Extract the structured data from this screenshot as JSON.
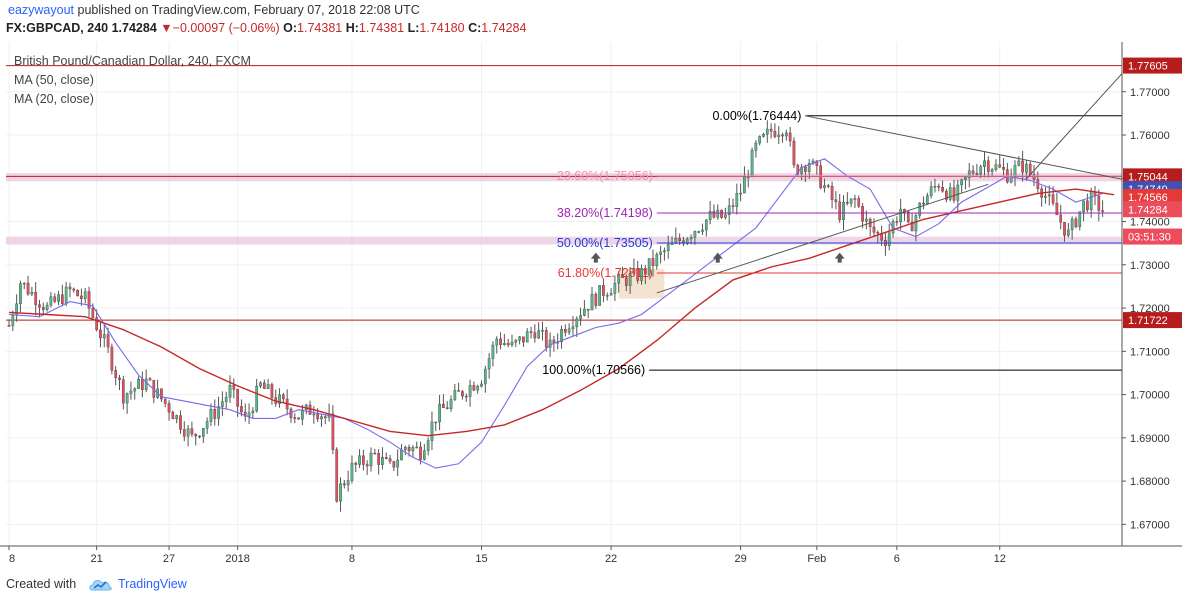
{
  "header": {
    "username": "eazywayout",
    "published_text": "published on TradingView.com, February 07, 2018 22:08 UTC",
    "symbol": "FX:GBPCAD, 240",
    "last": "1.74284",
    "change_arrow": "▼",
    "change": "−0.00097 (−0.06%)",
    "ohlc_o_label": "O:",
    "ohlc_o": "1.74381",
    "ohlc_h_label": "H:",
    "ohlc_h": "1.74381",
    "ohlc_l_label": "L:",
    "ohlc_l": "1.74180",
    "ohlc_c_label": "C:",
    "ohlc_c": "1.74284"
  },
  "legend": {
    "title": "British Pound/Canadian Dollar, 240, FXCM",
    "ma1": "MA (50, close)",
    "ma2": "MA (20, close)"
  },
  "footer": {
    "created": "Created with",
    "brand": "TradingView"
  },
  "colors": {
    "bull": "#53b987",
    "bear": "#eb4d5c",
    "ma50": "#c62828",
    "ma20": "#7b68ee",
    "hline": "#b71c1c",
    "fib_black": "#000000",
    "fib_pink": "#f48fb1",
    "fib_purple": "#9c27b0",
    "fib_blue": "#1e3cd6",
    "fib_red": "#e53935",
    "zone": "#e8c8e0",
    "grid": "#eef0f3"
  },
  "chart_data": {
    "type": "candlestick",
    "symbol": "GBPCAD",
    "timeframe": "240",
    "x_ticks": [
      {
        "label": "8",
        "bar": 0
      },
      {
        "label": "21",
        "bar": 23
      },
      {
        "label": "27",
        "bar": 42
      },
      {
        "label": "2018",
        "bar": 60
      },
      {
        "label": "8",
        "bar": 90
      },
      {
        "label": "15",
        "bar": 124
      },
      {
        "label": "22",
        "bar": 158
      },
      {
        "label": "29",
        "bar": 192
      },
      {
        "label": "Feb",
        "bar": 212
      },
      {
        "label": "6",
        "bar": 233
      },
      {
        "label": "12",
        "bar": 260
      }
    ],
    "bar_count_span": 285,
    "ylim": [
      1.665,
      1.7815
    ],
    "y_ticks": [
      "1.67000",
      "1.68000",
      "1.69000",
      "1.70000",
      "1.71000",
      "1.72000",
      "1.73000",
      "1.74000",
      "1.75000",
      "1.76000",
      "1.77000"
    ],
    "horizontal_levels": [
      {
        "price": 1.77605,
        "label": "1.77605"
      },
      {
        "price": 1.75044,
        "label": "1.75044"
      },
      {
        "price": 1.71722,
        "label": "1.71722"
      }
    ],
    "price_tags": [
      {
        "price": 1.77605,
        "label": "1.77605",
        "color": "#b71c1c"
      },
      {
        "price": 1.75044,
        "label": "1.75044",
        "color": "#b71c1c"
      },
      {
        "price": 1.74749,
        "label": "1.74749",
        "color": "#3f51b5"
      },
      {
        "price": 1.74566,
        "label": "1.74566",
        "color": "#e53935"
      },
      {
        "price": 1.74284,
        "label": "1.74284",
        "color": "#eb4d5c"
      },
      {
        "price": 1.73653,
        "label": "03:51:30",
        "color": "#eb4d5c"
      },
      {
        "price": 1.71722,
        "label": "1.71722",
        "color": "#b71c1c"
      }
    ],
    "fibonacci": [
      {
        "price": 1.76444,
        "label": "0.00%(1.76444)",
        "color": "#000000"
      },
      {
        "price": 1.75056,
        "label": "23.60%(1.75056)",
        "color": "#f48fb1"
      },
      {
        "price": 1.74198,
        "label": "38.20%(1.74198)",
        "color": "#9c27b0"
      },
      {
        "price": 1.73505,
        "label": "50.00%(1.73505)",
        "color": "#1e3cd6"
      },
      {
        "price": 1.72811,
        "label": "61.80%(1.72811)",
        "color": "#e53935"
      },
      {
        "price": 1.70566,
        "label": "100.00%(1.70566)",
        "color": "#000000"
      }
    ],
    "zones": [
      {
        "from": 1.7493,
        "to": 1.7512
      },
      {
        "from": 1.7347,
        "to": 1.7365
      }
    ],
    "trendlines": [
      {
        "from": [
          170,
          1.7235
        ],
        "to": [
          257,
          1.7486
        ]
      },
      {
        "from": [
          209,
          1.76444
        ],
        "to": [
          302,
          1.74803
        ]
      },
      {
        "from": [
          267,
          1.74986
        ],
        "to": [
          294,
          1.77605
        ]
      }
    ],
    "anchors": [
      {
        "x": [
          0,
          300
        ],
        "series": "ma20",
        "points": [
          [
            0,
            1.7185
          ],
          [
            8,
            1.718
          ],
          [
            16,
            1.7215
          ],
          [
            22,
            1.7205
          ],
          [
            28,
            1.712
          ],
          [
            34,
            1.7045
          ],
          [
            40,
            1.6995
          ],
          [
            46,
            1.6985
          ],
          [
            52,
            1.6975
          ],
          [
            58,
            1.6965
          ],
          [
            64,
            1.6945
          ],
          [
            70,
            1.6945
          ],
          [
            76,
            1.6965
          ],
          [
            82,
            1.6955
          ],
          [
            88,
            1.6945
          ],
          [
            94,
            1.692
          ],
          [
            100,
            1.689
          ],
          [
            106,
            1.6855
          ],
          [
            112,
            1.683
          ],
          [
            118,
            1.684
          ],
          [
            124,
            1.689
          ],
          [
            130,
            1.6975
          ],
          [
            136,
            1.7065
          ],
          [
            142,
            1.7115
          ],
          [
            148,
            1.7135
          ],
          [
            154,
            1.7155
          ],
          [
            160,
            1.7165
          ],
          [
            166,
            1.7185
          ],
          [
            172,
            1.7225
          ],
          [
            178,
            1.7265
          ],
          [
            184,
            1.7305
          ],
          [
            190,
            1.7345
          ],
          [
            196,
            1.7385
          ],
          [
            202,
            1.7455
          ],
          [
            208,
            1.7525
          ],
          [
            214,
            1.7545
          ],
          [
            220,
            1.7505
          ],
          [
            226,
            1.7475
          ],
          [
            232,
            1.7385
          ],
          [
            238,
            1.7365
          ],
          [
            244,
            1.7395
          ],
          [
            250,
            1.7445
          ],
          [
            256,
            1.7475
          ],
          [
            262,
            1.7505
          ],
          [
            268,
            1.7495
          ],
          [
            274,
            1.7475
          ],
          [
            280,
            1.7445
          ],
          [
            287,
            1.7465
          ]
        ]
      },
      {
        "x": [
          0,
          300
        ],
        "series": "ma50",
        "points": [
          [
            0,
            1.719
          ],
          [
            10,
            1.7185
          ],
          [
            20,
            1.718
          ],
          [
            30,
            1.715
          ],
          [
            40,
            1.711
          ],
          [
            50,
            1.706
          ],
          [
            60,
            1.702
          ],
          [
            70,
            1.6985
          ],
          [
            80,
            1.6965
          ],
          [
            90,
            1.694
          ],
          [
            100,
            1.6915
          ],
          [
            110,
            1.6905
          ],
          [
            120,
            1.6915
          ],
          [
            130,
            1.693
          ],
          [
            140,
            1.6965
          ],
          [
            150,
            1.701
          ],
          [
            160,
            1.706
          ],
          [
            170,
            1.7125
          ],
          [
            180,
            1.72
          ],
          [
            190,
            1.7265
          ],
          [
            200,
            1.7295
          ],
          [
            210,
            1.7315
          ],
          [
            220,
            1.7345
          ],
          [
            230,
            1.7375
          ],
          [
            240,
            1.7405
          ],
          [
            250,
            1.7425
          ],
          [
            260,
            1.7445
          ],
          [
            270,
            1.7465
          ],
          [
            280,
            1.7475
          ],
          [
            290,
            1.7462
          ]
        ]
      }
    ],
    "arrow_markers": [
      {
        "bar": 154,
        "price": 1.7328
      },
      {
        "bar": 186,
        "price": 1.7328
      },
      {
        "bar": 218,
        "price": 1.7328
      }
    ]
  }
}
